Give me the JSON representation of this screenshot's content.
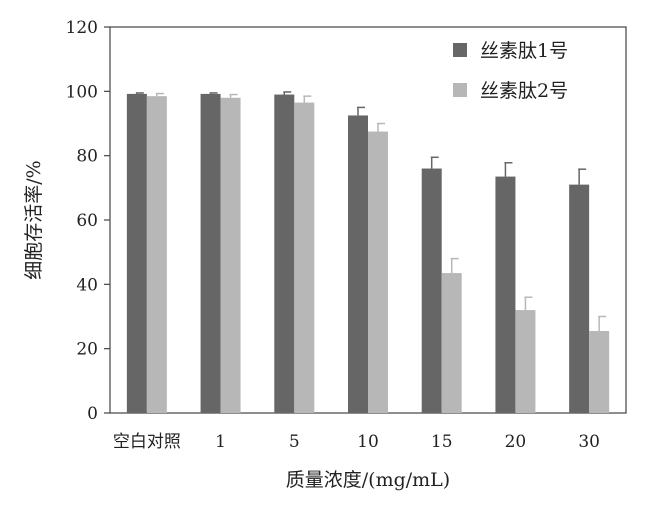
{
  "chart_data": {
    "type": "bar",
    "title": "",
    "xlabel": "质量浓度/(mg/mL)",
    "ylabel": "细胞存活率/%",
    "ylim": [
      0,
      120
    ],
    "yticks": [
      0,
      20,
      40,
      60,
      80,
      100,
      120
    ],
    "categories": [
      "空白对照",
      "1",
      "5",
      "10",
      "15",
      "20",
      "30"
    ],
    "series": [
      {
        "name": "丝素肽1号",
        "color": "#666666",
        "values": [
          99.2,
          99.2,
          99.0,
          92.5,
          76.0,
          73.5,
          71.0
        ],
        "errors": [
          0.3,
          0.3,
          0.8,
          2.5,
          3.5,
          4.3,
          4.8
        ]
      },
      {
        "name": "丝素肽2号",
        "color": "#b7b7b7",
        "values": [
          98.5,
          98.0,
          96.5,
          87.5,
          43.5,
          32.0,
          25.5
        ],
        "errors": [
          0.8,
          1.0,
          2.0,
          2.5,
          4.5,
          4.0,
          4.5
        ]
      }
    ],
    "grid": false,
    "legend_position": "top-right"
  }
}
